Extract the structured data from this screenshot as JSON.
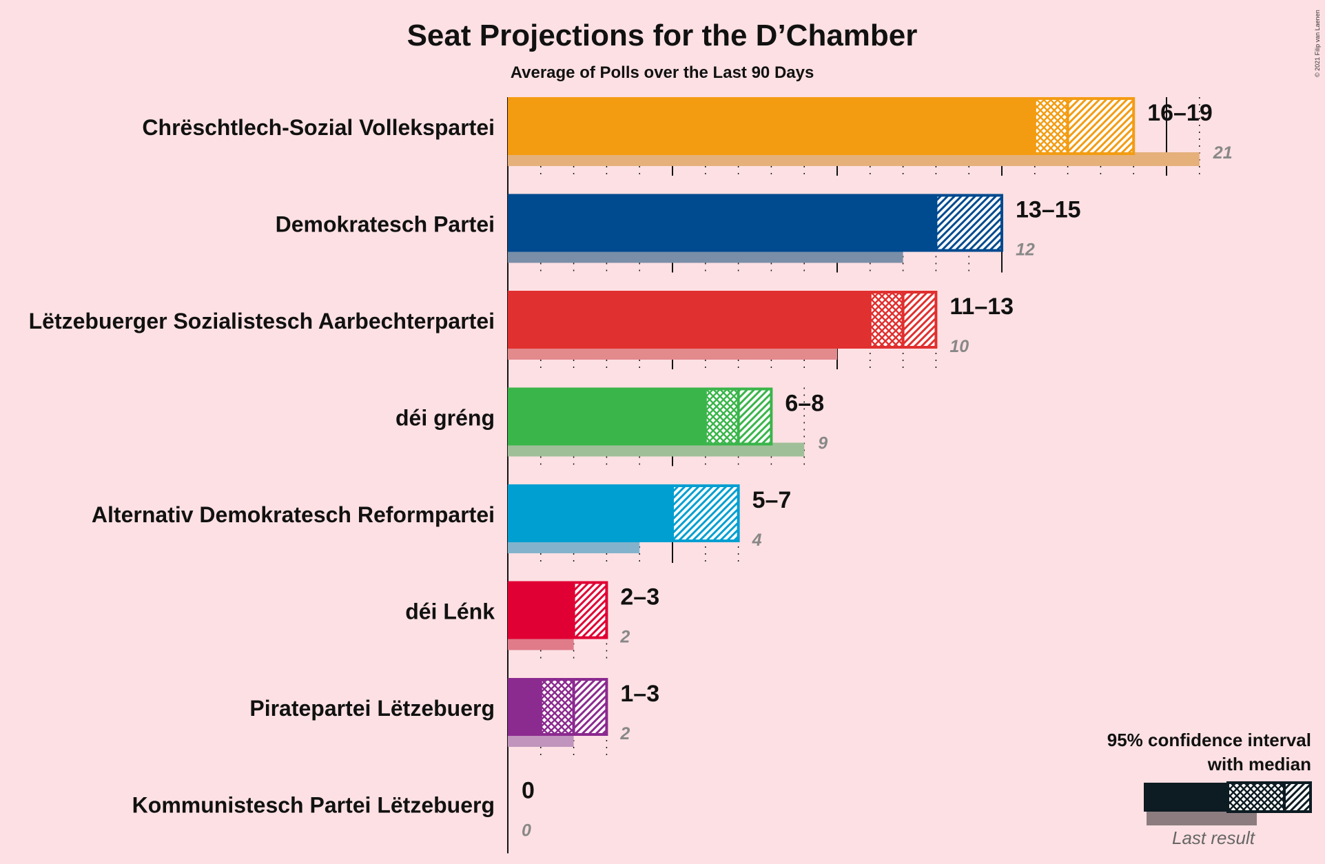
{
  "chart_data": {
    "type": "bar",
    "title": "Seat Projections for the D’Chamber",
    "subtitle": "Average of Polls over the Last 90 Days",
    "copyright": "© 2021 Filip van Laenen",
    "xlim": [
      0,
      21
    ],
    "legend": {
      "title_line1": "95% confidence interval",
      "title_line2": "with median",
      "last_result_label": "Last result",
      "placement": "bottom-right"
    },
    "parties": [
      {
        "name": "Chrëschtlech-Sozial Vollekspartei",
        "low": 16,
        "median": 17,
        "high": 19,
        "range_label": "16–19",
        "last": 21,
        "last_label": "21",
        "color": "#f39c12",
        "last_color": "#e5b07a"
      },
      {
        "name": "Demokratesch Partei",
        "low": 13,
        "median": 13,
        "high": 15,
        "range_label": "13–15",
        "last": 12,
        "last_label": "12",
        "color": "#004a8f",
        "last_color": "#7a8ea8"
      },
      {
        "name": "Lëtzebuerger Sozialistesch Aarbechterpartei",
        "low": 11,
        "median": 12,
        "high": 13,
        "range_label": "11–13",
        "last": 10,
        "last_label": "10",
        "color": "#e0302f",
        "last_color": "#e28a8c"
      },
      {
        "name": "déi gréng",
        "low": 6,
        "median": 7,
        "high": 8,
        "range_label": "6–8",
        "last": 9,
        "last_label": "9",
        "color": "#3ab54a",
        "last_color": "#9fbf98"
      },
      {
        "name": "Alternativ Demokratesch Reformpartei",
        "low": 5,
        "median": 5,
        "high": 7,
        "range_label": "5–7",
        "last": 4,
        "last_label": "4",
        "color": "#009fd1",
        "last_color": "#83b3cc"
      },
      {
        "name": "déi Lénk",
        "low": 2,
        "median": 2,
        "high": 3,
        "range_label": "2–3",
        "last": 2,
        "last_label": "2",
        "color": "#e00034",
        "last_color": "#e07b8a"
      },
      {
        "name": "Piratepartei Lëtzebuerg",
        "low": 1,
        "median": 2,
        "high": 3,
        "range_label": "1–3",
        "last": 2,
        "last_label": "2",
        "color": "#8b2a8f",
        "last_color": "#c094bd"
      },
      {
        "name": "Kommunistesch Partei Lëtzebuerg",
        "low": 0,
        "median": 0,
        "high": 0,
        "range_label": "0",
        "last": 0,
        "last_label": "0",
        "color": "#cc0000",
        "last_color": "#d98080"
      }
    ]
  }
}
